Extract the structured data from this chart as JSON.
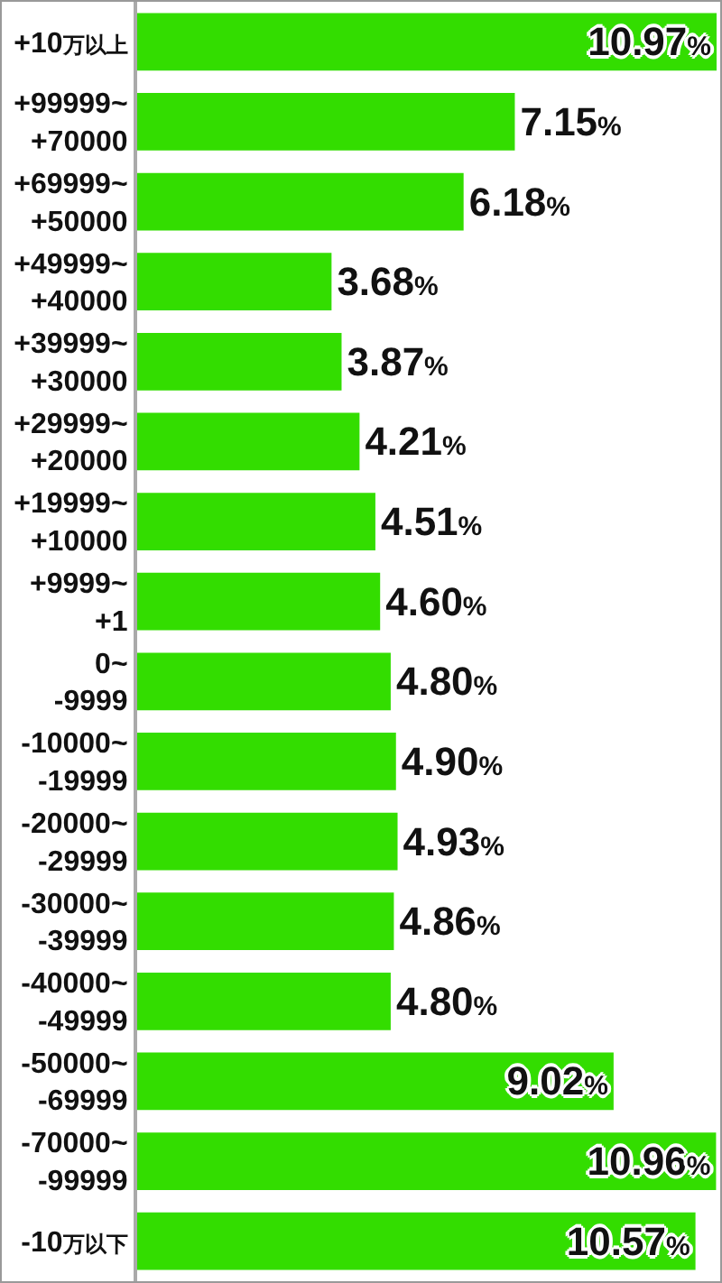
{
  "chart_data": {
    "type": "bar",
    "orientation": "horizontal",
    "tick_labels": "y",
    "categories": [
      "+10万以上",
      "+99999~\n+70000",
      "+69999~\n+50000",
      "+49999~\n+40000",
      "+39999~\n+30000",
      "+29999~\n+20000",
      "+19999~\n+10000",
      "+9999~\n+1",
      "0~\n-9999",
      "-10000~\n-19999",
      "-20000~\n-29999",
      "-30000~\n-39999",
      "-40000~\n-49999",
      "-50000~\n-69999",
      "-70000~\n-99999",
      "-10万以下"
    ],
    "values": [
      10.97,
      7.15,
      6.18,
      3.68,
      3.87,
      4.21,
      4.51,
      4.6,
      4.8,
      4.9,
      4.93,
      4.86,
      4.8,
      9.02,
      10.96,
      10.57
    ],
    "value_labels": [
      "10.97%",
      "7.15%",
      "6.18%",
      "3.68%",
      "3.87%",
      "4.21%",
      "4.51%",
      "4.60%",
      "4.80%",
      "4.90%",
      "4.93%",
      "4.86%",
      "4.80%",
      "9.02%",
      "10.96%",
      "10.57%"
    ],
    "color": "#33dd00"
  }
}
